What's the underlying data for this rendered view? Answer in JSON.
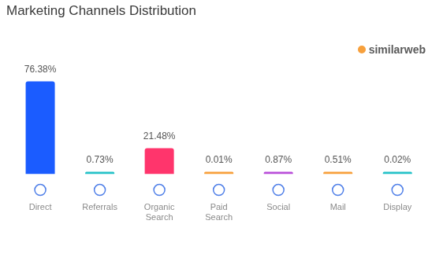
{
  "chart_data": {
    "type": "bar",
    "title": "Marketing Channels Distribution",
    "annotations": [
      "similarweb"
    ],
    "categories": [
      "Direct",
      "Referrals",
      "Organic Search",
      "Paid Search",
      "Social",
      "Mail",
      "Display"
    ],
    "values": [
      76.38,
      0.73,
      21.48,
      0.01,
      0.87,
      0.51,
      0.02
    ],
    "value_labels": [
      "76.38%",
      "0.73%",
      "21.48%",
      "0.01%",
      "0.87%",
      "0.51%",
      "0.02%"
    ],
    "colors": [
      "#1b5cff",
      "#25c2c8",
      "#ff356c",
      "#f7a03c",
      "#b94fd9",
      "#f7a03c",
      "#25c2c8"
    ],
    "data_labels": true,
    "tick_labels": "x",
    "grid": false
  }
}
